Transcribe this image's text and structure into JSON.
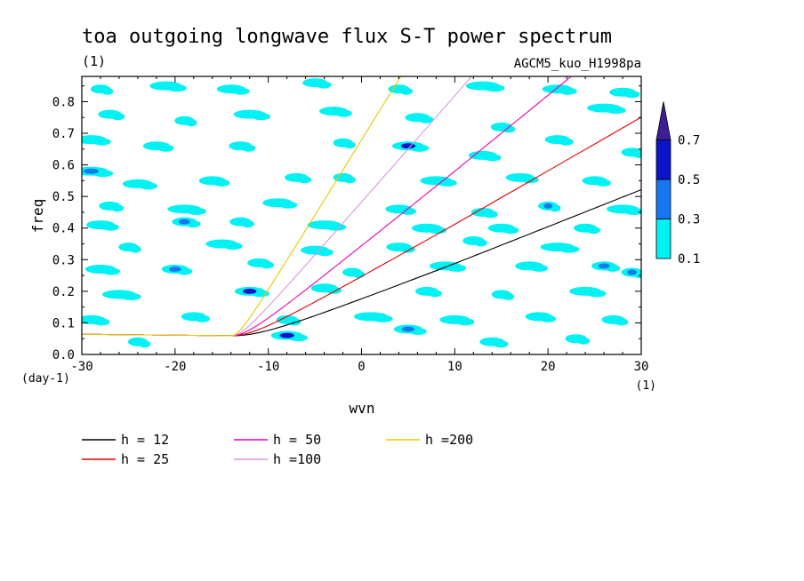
{
  "chart_data": {
    "type": "contour",
    "title": "toa outgoing longwave flux S-T power spectrum",
    "units_label": "(1)",
    "run_label": "AGCM5_kuo_H1998pa",
    "xlabel": "wvn",
    "ylabel": "freq",
    "x_unit_label": "(1)",
    "y_unit_label": "(day-1)",
    "xlim": [
      -30,
      30
    ],
    "ylim": [
      0.0,
      0.88
    ],
    "xticks": [
      -30,
      -20,
      -10,
      0,
      10,
      20,
      30
    ],
    "xtick_labels": [
      "-30",
      "-20",
      "-10",
      "0",
      "10",
      "20",
      "30"
    ],
    "yticks": [
      0.0,
      0.1,
      0.2,
      0.3,
      0.4,
      0.5,
      0.6,
      0.7,
      0.8
    ],
    "ytick_labels": [
      "0.0",
      "0.1",
      "0.2",
      "0.3",
      "0.4",
      "0.5",
      "0.6",
      "0.7",
      "0.8"
    ],
    "contour_levels": [
      0.1,
      0.3,
      0.5,
      0.7
    ],
    "colorbar_labels": [
      "0.1",
      "0.3",
      "0.5",
      "0.7"
    ],
    "level_colors": [
      "#00f2f2",
      "#1478f0",
      "#0a14c8",
      "#3c1e96"
    ],
    "dispersion_curves": [
      {
        "label": "h = 12",
        "h": 12,
        "color": "#000000"
      },
      {
        "label": "h = 25",
        "h": 25,
        "color": "#e60000"
      },
      {
        "label": "h = 50",
        "h": 50,
        "color": "#e600b4"
      },
      {
        "label": "h =100",
        "h": 100,
        "color": "#dc96dc"
      },
      {
        "label": "h =200",
        "h": 200,
        "color": "#e6c800"
      }
    ],
    "field_patches": [
      {
        "x": -28,
        "y": 0.84,
        "v": 0.2
      },
      {
        "x": -21,
        "y": 0.85,
        "v": 0.2
      },
      {
        "x": -14,
        "y": 0.84,
        "v": 0.2
      },
      {
        "x": -5,
        "y": 0.86,
        "v": 0.2
      },
      {
        "x": 4,
        "y": 0.84,
        "v": 0.2
      },
      {
        "x": 13,
        "y": 0.85,
        "v": 0.2
      },
      {
        "x": 21,
        "y": 0.84,
        "v": 0.2
      },
      {
        "x": 28,
        "y": 0.83,
        "v": 0.2
      },
      {
        "x": -27,
        "y": 0.76,
        "v": 0.2
      },
      {
        "x": -19,
        "y": 0.74,
        "v": 0.2
      },
      {
        "x": -12,
        "y": 0.76,
        "v": 0.2
      },
      {
        "x": -3,
        "y": 0.77,
        "v": 0.2
      },
      {
        "x": 6,
        "y": 0.75,
        "v": 0.2
      },
      {
        "x": 15,
        "y": 0.72,
        "v": 0.2
      },
      {
        "x": 26,
        "y": 0.78,
        "v": 0.2
      },
      {
        "x": -29,
        "y": 0.68,
        "v": 0.2
      },
      {
        "x": -22,
        "y": 0.66,
        "v": 0.2
      },
      {
        "x": -13,
        "y": 0.66,
        "v": 0.2
      },
      {
        "x": -2,
        "y": 0.67,
        "v": 0.2
      },
      {
        "x": 5,
        "y": 0.66,
        "v": 0.55
      },
      {
        "x": 13,
        "y": 0.63,
        "v": 0.2
      },
      {
        "x": 21,
        "y": 0.68,
        "v": 0.2
      },
      {
        "x": 29,
        "y": 0.64,
        "v": 0.2
      },
      {
        "x": -29,
        "y": 0.58,
        "v": 0.35
      },
      {
        "x": -24,
        "y": 0.54,
        "v": 0.2
      },
      {
        "x": -16,
        "y": 0.55,
        "v": 0.2
      },
      {
        "x": -7,
        "y": 0.56,
        "v": 0.2
      },
      {
        "x": -2,
        "y": 0.56,
        "v": 0.2
      },
      {
        "x": 8,
        "y": 0.55,
        "v": 0.2
      },
      {
        "x": 17,
        "y": 0.56,
        "v": 0.2
      },
      {
        "x": 25,
        "y": 0.55,
        "v": 0.2
      },
      {
        "x": -27,
        "y": 0.47,
        "v": 0.2
      },
      {
        "x": -19,
        "y": 0.46,
        "v": 0.2
      },
      {
        "x": -9,
        "y": 0.48,
        "v": 0.2
      },
      {
        "x": 4,
        "y": 0.46,
        "v": 0.2
      },
      {
        "x": 13,
        "y": 0.45,
        "v": 0.2
      },
      {
        "x": 20,
        "y": 0.47,
        "v": 0.35
      },
      {
        "x": 28,
        "y": 0.46,
        "v": 0.2
      },
      {
        "x": -28,
        "y": 0.41,
        "v": 0.2
      },
      {
        "x": -19,
        "y": 0.42,
        "v": 0.35
      },
      {
        "x": -13,
        "y": 0.42,
        "v": 0.2
      },
      {
        "x": -4,
        "y": 0.41,
        "v": 0.2
      },
      {
        "x": 7,
        "y": 0.4,
        "v": 0.2
      },
      {
        "x": 15,
        "y": 0.4,
        "v": 0.2
      },
      {
        "x": 24,
        "y": 0.4,
        "v": 0.2
      },
      {
        "x": -25,
        "y": 0.34,
        "v": 0.2
      },
      {
        "x": -15,
        "y": 0.35,
        "v": 0.2
      },
      {
        "x": -5,
        "y": 0.33,
        "v": 0.2
      },
      {
        "x": 4,
        "y": 0.34,
        "v": 0.2
      },
      {
        "x": 12,
        "y": 0.36,
        "v": 0.2
      },
      {
        "x": 21,
        "y": 0.34,
        "v": 0.2
      },
      {
        "x": -28,
        "y": 0.27,
        "v": 0.2
      },
      {
        "x": -20,
        "y": 0.27,
        "v": 0.35
      },
      {
        "x": -11,
        "y": 0.29,
        "v": 0.2
      },
      {
        "x": -1,
        "y": 0.26,
        "v": 0.2
      },
      {
        "x": 9,
        "y": 0.28,
        "v": 0.2
      },
      {
        "x": 18,
        "y": 0.28,
        "v": 0.2
      },
      {
        "x": 26,
        "y": 0.28,
        "v": 0.35
      },
      {
        "x": 29,
        "y": 0.26,
        "v": 0.35
      },
      {
        "x": -26,
        "y": 0.19,
        "v": 0.2
      },
      {
        "x": -12,
        "y": 0.2,
        "v": 0.55
      },
      {
        "x": -4,
        "y": 0.21,
        "v": 0.2
      },
      {
        "x": 7,
        "y": 0.2,
        "v": 0.2
      },
      {
        "x": 15,
        "y": 0.19,
        "v": 0.2
      },
      {
        "x": 24,
        "y": 0.2,
        "v": 0.2
      },
      {
        "x": -29,
        "y": 0.11,
        "v": 0.2
      },
      {
        "x": -18,
        "y": 0.12,
        "v": 0.2
      },
      {
        "x": -8,
        "y": 0.11,
        "v": 0.2
      },
      {
        "x": 1,
        "y": 0.12,
        "v": 0.2
      },
      {
        "x": 10,
        "y": 0.11,
        "v": 0.2
      },
      {
        "x": 19,
        "y": 0.12,
        "v": 0.2
      },
      {
        "x": 27,
        "y": 0.11,
        "v": 0.2
      },
      {
        "x": -24,
        "y": 0.04,
        "v": 0.2
      },
      {
        "x": -8,
        "y": 0.06,
        "v": 0.55
      },
      {
        "x": 5,
        "y": 0.08,
        "v": 0.35
      },
      {
        "x": 14,
        "y": 0.04,
        "v": 0.2
      },
      {
        "x": 23,
        "y": 0.05,
        "v": 0.2
      }
    ]
  }
}
